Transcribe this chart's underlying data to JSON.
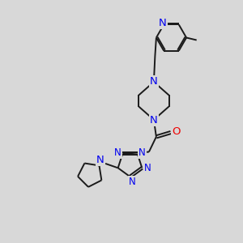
{
  "bg_color": "#d8d8d8",
  "bond_color": "#1a1a1a",
  "N_color": "#0000ee",
  "O_color": "#ee0000",
  "font_size": 8.5,
  "line_width": 1.4,
  "dbo": 0.06,
  "figsize": [
    3.0,
    3.0
  ],
  "dpi": 100,
  "xlim": [
    0,
    10
  ],
  "ylim": [
    0,
    10
  ]
}
